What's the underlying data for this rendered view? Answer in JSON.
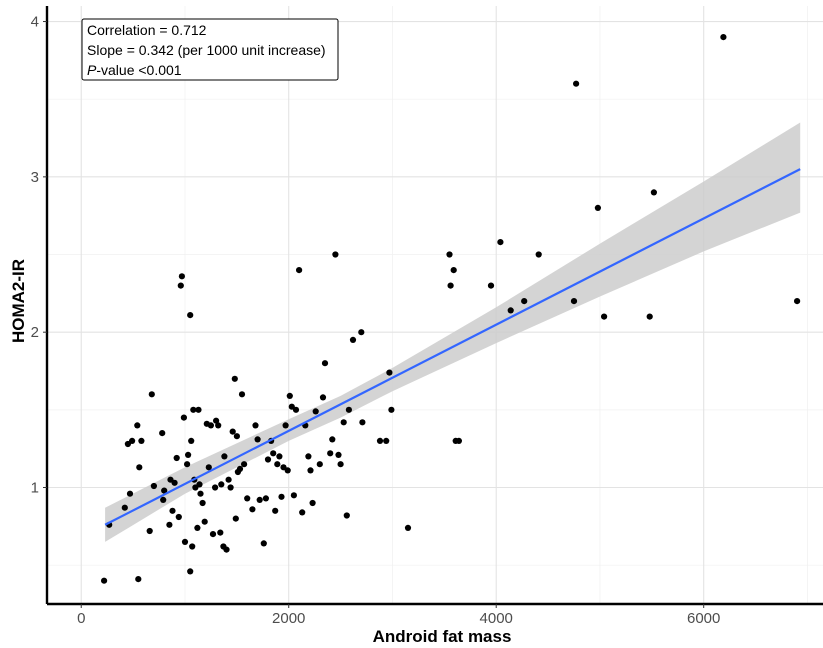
{
  "chart_data": {
    "type": "scatter",
    "xlabel": "Android fat mass",
    "ylabel": "HOMA2-IR",
    "xlim": [
      -330,
      7150
    ],
    "ylim": [
      0.25,
      4.1
    ],
    "x_ticks": [
      0,
      2000,
      4000,
      6000
    ],
    "y_ticks": [
      1,
      2,
      3,
      4
    ],
    "x_tick_labels": [
      "0",
      "2000",
      "4000",
      "6000"
    ],
    "y_tick_labels": [
      "1",
      "2",
      "3",
      "4"
    ],
    "grid": true,
    "annotation": {
      "line1": "Correlation = 0.712",
      "line2": "Slope = 0.342 (per 1000 unit increase)",
      "line3_italic": "P",
      "line3_rest": "-value <0.001"
    },
    "regression": {
      "x": [
        230,
        6930
      ],
      "y": [
        0.76,
        3.05
      ],
      "ci_x": [
        230,
        1000,
        2000,
        2500,
        3000,
        4000,
        5000,
        6000,
        6930
      ],
      "ci_upper": [
        0.87,
        1.13,
        1.44,
        1.59,
        1.77,
        2.16,
        2.57,
        2.97,
        3.35
      ],
      "ci_lower": [
        0.65,
        0.96,
        1.3,
        1.45,
        1.62,
        1.93,
        2.23,
        2.52,
        2.77
      ],
      "color": "#3366ff",
      "band_color": "#cccccc"
    },
    "points": [
      [
        220,
        0.4
      ],
      [
        550,
        0.41
      ],
      [
        1050,
        0.46
      ],
      [
        270,
        0.76
      ],
      [
        420,
        0.87
      ],
      [
        470,
        0.96
      ],
      [
        560,
        1.13
      ],
      [
        540,
        1.4
      ],
      [
        580,
        1.3
      ],
      [
        450,
        1.28
      ],
      [
        490,
        1.3
      ],
      [
        680,
        1.6
      ],
      [
        660,
        0.72
      ],
      [
        700,
        1.01
      ],
      [
        780,
        1.35
      ],
      [
        790,
        0.92
      ],
      [
        800,
        0.98
      ],
      [
        850,
        0.76
      ],
      [
        860,
        1.05
      ],
      [
        880,
        0.85
      ],
      [
        900,
        1.03
      ],
      [
        920,
        1.19
      ],
      [
        940,
        0.81
      ],
      [
        960,
        2.3
      ],
      [
        970,
        2.36
      ],
      [
        990,
        1.45
      ],
      [
        1000,
        0.65
      ],
      [
        1020,
        1.15
      ],
      [
        1030,
        1.21
      ],
      [
        1050,
        2.11
      ],
      [
        1060,
        1.3
      ],
      [
        1070,
        0.62
      ],
      [
        1080,
        1.5
      ],
      [
        1090,
        1.05
      ],
      [
        1100,
        1.0
      ],
      [
        1120,
        0.74
      ],
      [
        1130,
        1.5
      ],
      [
        1140,
        1.02
      ],
      [
        1150,
        0.96
      ],
      [
        1170,
        0.9
      ],
      [
        1190,
        0.78
      ],
      [
        1210,
        1.41
      ],
      [
        1230,
        1.13
      ],
      [
        1250,
        1.4
      ],
      [
        1270,
        0.7
      ],
      [
        1290,
        1.0
      ],
      [
        1300,
        1.43
      ],
      [
        1320,
        1.4
      ],
      [
        1340,
        0.71
      ],
      [
        1350,
        1.02
      ],
      [
        1370,
        0.62
      ],
      [
        1380,
        1.2
      ],
      [
        1400,
        0.6
      ],
      [
        1420,
        1.05
      ],
      [
        1440,
        1.0
      ],
      [
        1460,
        1.36
      ],
      [
        1480,
        1.7
      ],
      [
        1490,
        0.8
      ],
      [
        1500,
        1.33
      ],
      [
        1510,
        1.1
      ],
      [
        1530,
        1.12
      ],
      [
        1550,
        1.6
      ],
      [
        1570,
        1.15
      ],
      [
        1600,
        0.93
      ],
      [
        1650,
        0.86
      ],
      [
        1680,
        1.4
      ],
      [
        1700,
        1.31
      ],
      [
        1720,
        0.92
      ],
      [
        1760,
        0.64
      ],
      [
        1780,
        0.93
      ],
      [
        1800,
        1.18
      ],
      [
        1830,
        1.3
      ],
      [
        1850,
        1.22
      ],
      [
        1870,
        0.85
      ],
      [
        1890,
        1.15
      ],
      [
        1910,
        1.2
      ],
      [
        1930,
        0.94
      ],
      [
        1950,
        1.13
      ],
      [
        1970,
        1.4
      ],
      [
        1990,
        1.11
      ],
      [
        2010,
        1.59
      ],
      [
        2030,
        1.52
      ],
      [
        2050,
        0.95
      ],
      [
        2070,
        1.5
      ],
      [
        2100,
        2.4
      ],
      [
        2130,
        0.84
      ],
      [
        2160,
        1.4
      ],
      [
        2190,
        1.2
      ],
      [
        2210,
        1.11
      ],
      [
        2230,
        0.9
      ],
      [
        2260,
        1.49
      ],
      [
        2300,
        1.15
      ],
      [
        2330,
        1.58
      ],
      [
        2350,
        1.8
      ],
      [
        2400,
        1.22
      ],
      [
        2420,
        1.31
      ],
      [
        2450,
        2.5
      ],
      [
        2480,
        1.21
      ],
      [
        2500,
        1.15
      ],
      [
        2530,
        1.42
      ],
      [
        2560,
        0.82
      ],
      [
        2580,
        1.5
      ],
      [
        2620,
        1.95
      ],
      [
        2700,
        2.0
      ],
      [
        2710,
        1.42
      ],
      [
        2880,
        1.3
      ],
      [
        2940,
        1.3
      ],
      [
        2970,
        1.74
      ],
      [
        2990,
        1.5
      ],
      [
        3150,
        0.74
      ],
      [
        3550,
        2.5
      ],
      [
        3560,
        2.3
      ],
      [
        3590,
        2.4
      ],
      [
        3610,
        1.3
      ],
      [
        3640,
        1.3
      ],
      [
        3950,
        2.3
      ],
      [
        4040,
        2.58
      ],
      [
        4140,
        2.14
      ],
      [
        4270,
        2.2
      ],
      [
        4410,
        2.5
      ],
      [
        4750,
        2.2
      ],
      [
        4770,
        3.6
      ],
      [
        4980,
        2.8
      ],
      [
        5040,
        2.1
      ],
      [
        5480,
        2.1
      ],
      [
        5520,
        2.9
      ],
      [
        6190,
        3.9
      ],
      [
        6900,
        2.2
      ]
    ]
  }
}
